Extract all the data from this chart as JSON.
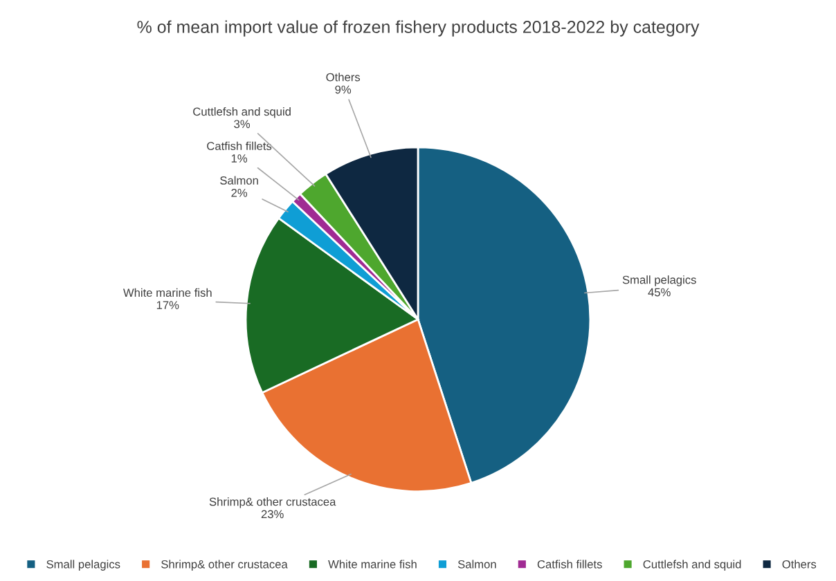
{
  "chart_data": {
    "type": "pie",
    "title": "% of mean import value of frozen fishery products 2018-2022 by category",
    "categories": [
      "Small pelagics",
      "Shrimp& other crustacea",
      "White marine fish",
      "Salmon",
      "Catfish fillets",
      "Cuttlefsh and squid",
      "Others"
    ],
    "values": [
      45,
      23,
      17,
      2,
      1,
      3,
      9
    ],
    "value_labels": [
      "45%",
      "23%",
      "17%",
      "2%",
      "1%",
      "3%",
      "9%"
    ],
    "colors": [
      "#156082",
      "#e97132",
      "#196b24",
      "#0f9ed5",
      "#a02b93",
      "#4ea72e",
      "#0e2841"
    ],
    "legend": "bottom"
  }
}
